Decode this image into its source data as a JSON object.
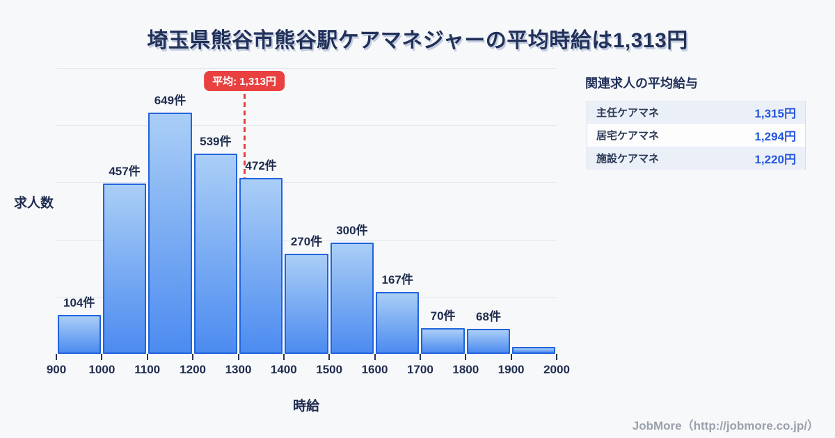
{
  "title": "埼玉県熊谷市熊谷駅ケアマネジャーの平均時給は1,313円",
  "chart_data": {
    "type": "bar",
    "categories": [
      "900-1000",
      "1000-1100",
      "1100-1200",
      "1200-1300",
      "1300-1400",
      "1400-1500",
      "1500-1600",
      "1600-1700",
      "1700-1800",
      "1800-1900",
      "1900-2000"
    ],
    "values": [
      104,
      457,
      649,
      539,
      472,
      270,
      300,
      167,
      70,
      68,
      19
    ],
    "bar_labels": [
      "104件",
      "457件",
      "649件",
      "539件",
      "472件",
      "270件",
      "300件",
      "167件",
      "70件",
      "68件",
      ""
    ],
    "x_ticks": [
      900,
      1000,
      1100,
      1200,
      1300,
      1400,
      1500,
      1600,
      1700,
      1800,
      1900,
      2000
    ],
    "xlabel": "時給",
    "ylabel": "求人数",
    "ylim": [
      0,
      768
    ],
    "grid": true,
    "average": {
      "value": 1313,
      "label": "平均: 1,313円"
    }
  },
  "panel": {
    "title": "関連求人の平均給与",
    "rows": [
      {
        "label": "主任ケアマネ",
        "value": "1,315円"
      },
      {
        "label": "居宅ケアマネ",
        "value": "1,294円"
      },
      {
        "label": "施設ケアマネ",
        "value": "1,220円"
      }
    ]
  },
  "footer": {
    "credit": "JobMore（http://jobmore.co.jp/）"
  },
  "colors": {
    "bg": "#f7f8fa",
    "navy": "#22315a",
    "red": "#e8413f",
    "barBorder": "#2163dd",
    "barTop": "#aacef6",
    "barBottom": "#4c8bf0",
    "valueBlue": "#2456de",
    "rowAlt": "#ebeff8",
    "footerGray": "#9aa1ab"
  }
}
